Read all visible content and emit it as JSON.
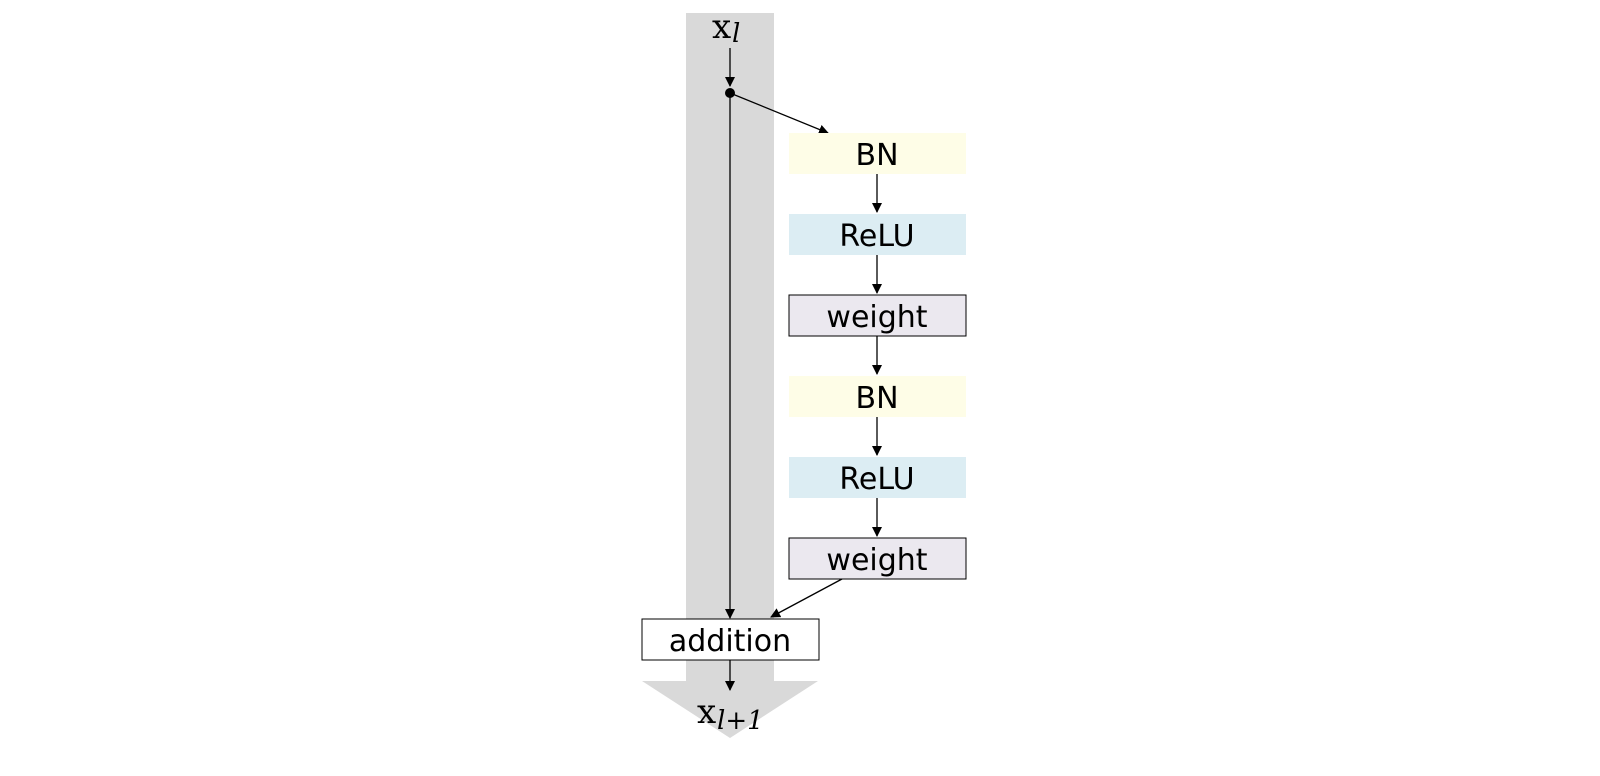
{
  "input": {
    "main": "x",
    "sub": "l"
  },
  "output": {
    "main": "x",
    "sub": "l+1"
  },
  "blocks": [
    {
      "id": "bn-1",
      "label": "BN",
      "fill": "#fefde7",
      "stroke": "none"
    },
    {
      "id": "relu-1",
      "label": "ReLU",
      "fill": "#dcedf3",
      "stroke": "none"
    },
    {
      "id": "weight-1",
      "label": "weight",
      "fill": "#ebe8ef",
      "stroke": "#000000"
    },
    {
      "id": "bn-2",
      "label": "BN",
      "fill": "#fefde7",
      "stroke": "none"
    },
    {
      "id": "relu-2",
      "label": "ReLU",
      "fill": "#dcedf3",
      "stroke": "none"
    },
    {
      "id": "weight-2",
      "label": "weight",
      "fill": "#ebe8ef",
      "stroke": "#000000"
    }
  ],
  "addition": {
    "label": "addition",
    "fill": "#ffffff",
    "stroke": "#000000"
  },
  "colors": {
    "shortcut_band": "#d9d9d9",
    "line": "#000000"
  }
}
